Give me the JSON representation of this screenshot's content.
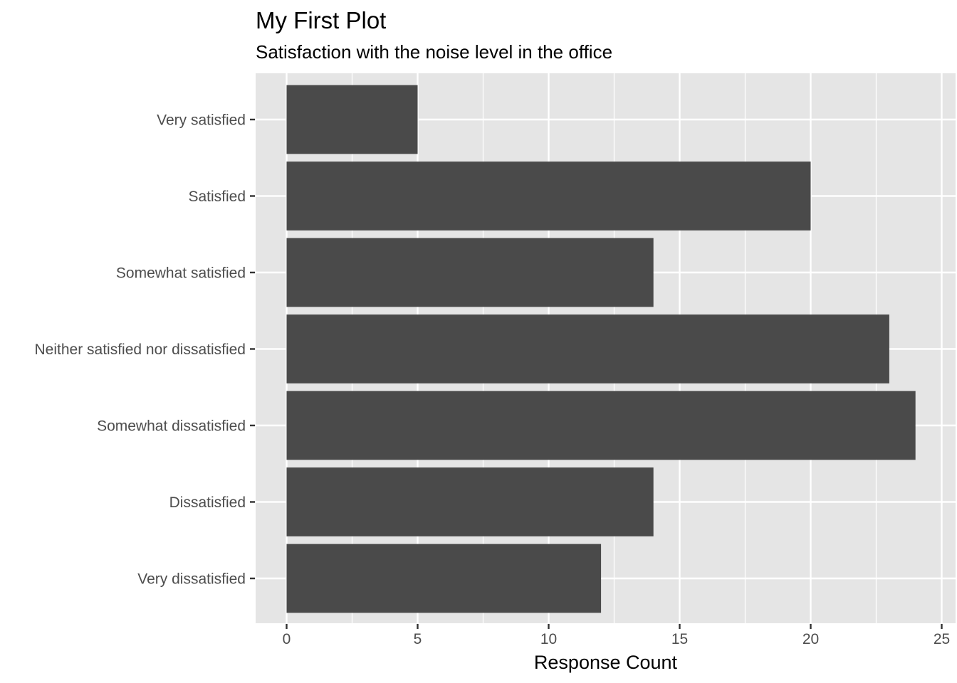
{
  "chart_data": {
    "type": "bar",
    "orientation": "horizontal",
    "title": "My First Plot",
    "subtitle": "Satisfaction with the noise level in the office",
    "xlabel": "Response Count",
    "ylabel": "",
    "xlim": [
      0,
      25
    ],
    "x_ticks": [
      "0",
      "5",
      "10",
      "15",
      "20",
      "25"
    ],
    "categories": [
      "Very satisfied",
      "Satisfied",
      "Somewhat satisfied",
      "Neither satisfied nor dissatisfied",
      "Somewhat dissatisfied",
      "Dissatisfied",
      "Very dissatisfied"
    ],
    "values": [
      5,
      20,
      14,
      23,
      24,
      14,
      12
    ],
    "grid": true,
    "legend": "none",
    "colors": {
      "bar": "#4a4a4a",
      "panel": "#e5e5e5",
      "grid": "#ffffff",
      "tick_text": "#4d4d4d"
    }
  }
}
